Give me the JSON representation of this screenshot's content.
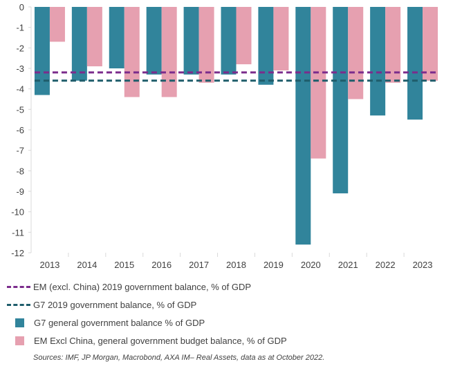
{
  "chart_data": {
    "type": "bar",
    "categories": [
      "2013",
      "2014",
      "2015",
      "2016",
      "2017",
      "2018",
      "2019",
      "2020",
      "2021",
      "2022",
      "2023"
    ],
    "series": [
      {
        "name": "G7 general government balance % of GDP",
        "color": "#31849b",
        "values": [
          -4.3,
          -3.6,
          -3.0,
          -3.3,
          -3.3,
          -3.3,
          -3.8,
          -11.6,
          -9.1,
          -5.3,
          -5.5
        ]
      },
      {
        "name": "EM Excl China, general government budget balance, % of GDP",
        "color": "#e6a0b0",
        "values": [
          -1.7,
          -2.9,
          -4.4,
          -4.4,
          -3.7,
          -2.8,
          -3.1,
          -7.4,
          -4.5,
          -3.7,
          -3.6
        ]
      }
    ],
    "reference_lines": [
      {
        "name": "EM (excl. China) 2019 government balance, % of GDP",
        "value": -3.2,
        "color": "#7b2c8c"
      },
      {
        "name": "G7 2019 government balance, % of GDP",
        "value": -3.6,
        "color": "#1f5d6b"
      }
    ],
    "ylim": [
      -12,
      0
    ],
    "yticks": [
      0,
      -1,
      -2,
      -3,
      -4,
      -5,
      -6,
      -7,
      -8,
      -9,
      -10,
      -11,
      -12
    ],
    "grid": false,
    "legend_position": "bottom",
    "source": "Sources: IMF, JP Morgan, Macrobond, AXA IM– Real Assets, data as at October 2022."
  }
}
